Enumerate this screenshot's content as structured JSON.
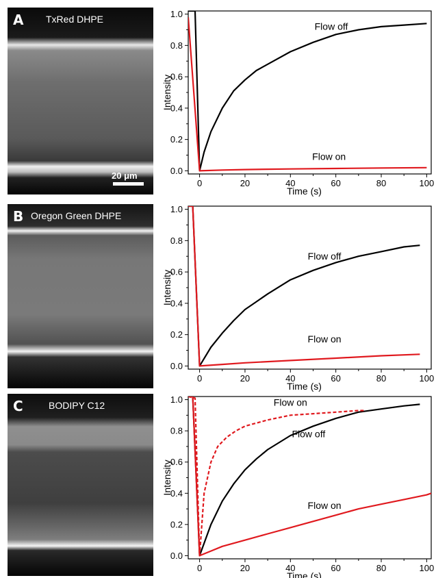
{
  "panels": [
    {
      "letter": "A",
      "dye": "TxRed DHPE",
      "scale_bar": "20 μm"
    },
    {
      "letter": "B",
      "dye": "Oregon Green DHPE",
      "scale_bar": ""
    },
    {
      "letter": "C",
      "dye": "BODIPY C12",
      "scale_bar": ""
    }
  ],
  "chart_data": [
    {
      "type": "line",
      "xlabel": "Time (s)",
      "ylabel": "Intensity",
      "xlim": [
        -5,
        102
      ],
      "ylim": [
        -0.02,
        1.02
      ],
      "xticks": [
        0,
        20,
        40,
        60,
        80,
        100
      ],
      "yticks": [
        0.0,
        0.2,
        0.4,
        0.6,
        0.8,
        1.0
      ],
      "colors": {
        "flow_off": "#000000",
        "flow_on": "#e0191e"
      },
      "annotations": [
        {
          "text": "Flow off",
          "x": 58,
          "y": 0.9
        },
        {
          "text": "Flow on",
          "x": 57,
          "y": 0.07
        }
      ],
      "series": [
        {
          "key": "flow_off",
          "color": "#000000",
          "dashed": false,
          "x": [
            -5,
            -2,
            0,
            2,
            5,
            10,
            15,
            20,
            25,
            30,
            40,
            50,
            60,
            70,
            80,
            90,
            100
          ],
          "y": [
            1.02,
            1.02,
            0.0,
            0.12,
            0.25,
            0.4,
            0.51,
            0.58,
            0.64,
            0.68,
            0.76,
            0.82,
            0.87,
            0.9,
            0.92,
            0.93,
            0.94
          ]
        },
        {
          "key": "flow_on",
          "color": "#e0191e",
          "dashed": false,
          "x": [
            -5,
            0,
            10,
            20,
            40,
            60,
            80,
            100
          ],
          "y": [
            0.98,
            0.0,
            0.005,
            0.008,
            0.012,
            0.015,
            0.018,
            0.02
          ]
        }
      ]
    },
    {
      "type": "line",
      "xlabel": "Time (s)",
      "ylabel": "Intensity",
      "xlim": [
        -5,
        102
      ],
      "ylim": [
        -0.02,
        1.02
      ],
      "xticks": [
        0,
        20,
        40,
        60,
        80,
        100
      ],
      "yticks": [
        0.0,
        0.2,
        0.4,
        0.6,
        0.8,
        1.0
      ],
      "colors": {
        "flow_off": "#000000",
        "flow_on": "#e0191e"
      },
      "annotations": [
        {
          "text": "Flow off",
          "x": 55,
          "y": 0.68
        },
        {
          "text": "Flow on",
          "x": 55,
          "y": 0.15
        }
      ],
      "series": [
        {
          "key": "flow_off",
          "color": "#000000",
          "dashed": false,
          "x": [
            -5,
            -3,
            0,
            5,
            10,
            15,
            20,
            25,
            30,
            40,
            50,
            60,
            70,
            80,
            90,
            97
          ],
          "y": [
            1.02,
            1.02,
            0.0,
            0.12,
            0.21,
            0.29,
            0.36,
            0.41,
            0.46,
            0.55,
            0.61,
            0.66,
            0.7,
            0.73,
            0.76,
            0.77
          ]
        },
        {
          "key": "flow_on",
          "color": "#e0191e",
          "dashed": false,
          "x": [
            -5,
            -3,
            0,
            10,
            20,
            40,
            60,
            80,
            97
          ],
          "y": [
            1.02,
            1.02,
            0.0,
            0.01,
            0.02,
            0.035,
            0.05,
            0.065,
            0.075
          ]
        }
      ]
    },
    {
      "type": "line",
      "xlabel": "Time (s)",
      "ylabel": "Intensity",
      "xlim": [
        -5,
        102
      ],
      "ylim": [
        -0.02,
        1.02
      ],
      "xticks": [
        0,
        20,
        40,
        60,
        80,
        100
      ],
      "yticks": [
        0.0,
        0.2,
        0.4,
        0.6,
        0.8,
        1.0
      ],
      "colors": {
        "flow_off": "#000000",
        "flow_on": "#e0191e"
      },
      "annotations": [
        {
          "text": "Flow on",
          "x": 40,
          "y": 0.96
        },
        {
          "text": "Flow off",
          "x": 48,
          "y": 0.76
        },
        {
          "text": "Flow on",
          "x": 55,
          "y": 0.3
        }
      ],
      "series": [
        {
          "key": "flow_off",
          "color": "#000000",
          "dashed": false,
          "x": [
            -5,
            -3,
            0,
            5,
            10,
            15,
            20,
            25,
            30,
            40,
            50,
            60,
            70,
            80,
            90,
            97
          ],
          "y": [
            1.02,
            1.02,
            0.0,
            0.2,
            0.35,
            0.46,
            0.55,
            0.62,
            0.68,
            0.77,
            0.83,
            0.88,
            0.92,
            0.94,
            0.96,
            0.97
          ]
        },
        {
          "key": "flow_on_dashed",
          "color": "#e0191e",
          "dashed": true,
          "x": [
            -5,
            -2,
            0,
            2,
            5,
            8,
            12,
            16,
            20,
            30,
            40,
            50,
            60,
            70,
            73
          ],
          "y": [
            1.02,
            1.01,
            0.0,
            0.4,
            0.6,
            0.7,
            0.76,
            0.8,
            0.83,
            0.87,
            0.9,
            0.91,
            0.92,
            0.93,
            0.93
          ]
        },
        {
          "key": "flow_on",
          "color": "#e0191e",
          "dashed": false,
          "x": [
            -5,
            -3,
            0,
            5,
            10,
            20,
            30,
            40,
            50,
            60,
            70,
            80,
            90,
            100,
            102
          ],
          "y": [
            1.02,
            1.02,
            0.0,
            0.03,
            0.06,
            0.1,
            0.14,
            0.18,
            0.22,
            0.26,
            0.3,
            0.33,
            0.36,
            0.39,
            0.4
          ]
        }
      ]
    }
  ]
}
